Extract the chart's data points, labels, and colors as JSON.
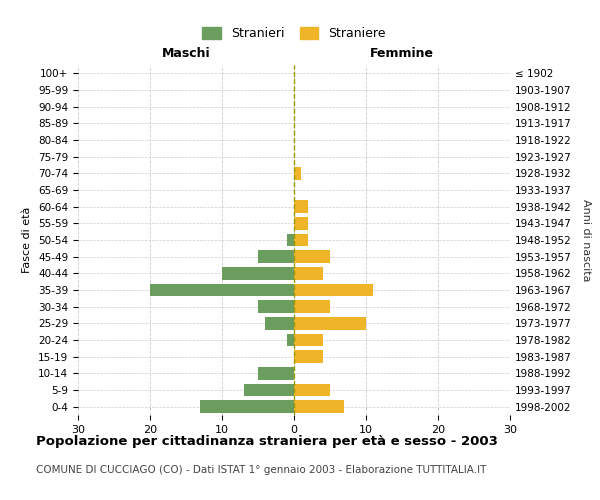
{
  "age_groups": [
    "0-4",
    "5-9",
    "10-14",
    "15-19",
    "20-24",
    "25-29",
    "30-34",
    "35-39",
    "40-44",
    "45-49",
    "50-54",
    "55-59",
    "60-64",
    "65-69",
    "70-74",
    "75-79",
    "80-84",
    "85-89",
    "90-94",
    "95-99",
    "100+"
  ],
  "birth_years": [
    "1998-2002",
    "1993-1997",
    "1988-1992",
    "1983-1987",
    "1978-1982",
    "1973-1977",
    "1968-1972",
    "1963-1967",
    "1958-1962",
    "1953-1957",
    "1948-1952",
    "1943-1947",
    "1938-1942",
    "1933-1937",
    "1928-1932",
    "1923-1927",
    "1918-1922",
    "1913-1917",
    "1908-1912",
    "1903-1907",
    "≤ 1902"
  ],
  "males": [
    13,
    7,
    5,
    0,
    1,
    4,
    5,
    20,
    10,
    5,
    1,
    0,
    0,
    0,
    0,
    0,
    0,
    0,
    0,
    0,
    0
  ],
  "females": [
    7,
    5,
    0,
    4,
    4,
    10,
    5,
    11,
    4,
    5,
    2,
    2,
    2,
    0,
    1,
    0,
    0,
    0,
    0,
    0,
    0
  ],
  "male_color": "#6b9e5e",
  "female_color": "#f0b429",
  "grid_color": "#cccccc",
  "center_line_color": "#999900",
  "title": "Popolazione per cittadinanza straniera per età e sesso - 2003",
  "subtitle": "COMUNE DI CUCCIAGO (CO) - Dati ISTAT 1° gennaio 2003 - Elaborazione TUTTITALIA.IT",
  "label_maschi": "Maschi",
  "label_femmine": "Femmine",
  "ylabel_left": "Fasce di età",
  "ylabel_right": "Anni di nascita",
  "legend_male": "Stranieri",
  "legend_female": "Straniere",
  "xlim": 30,
  "background_color": "#ffffff"
}
